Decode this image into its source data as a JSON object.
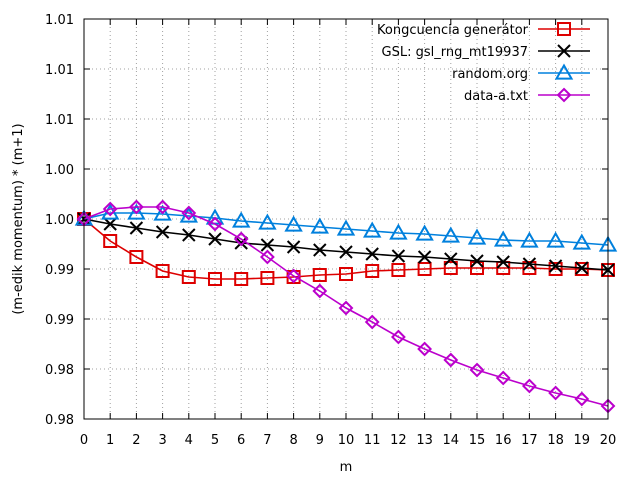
{
  "chart_data": {
    "type": "line",
    "xlabel": "m",
    "ylabel": "(m-edik momentum) * (m+1)",
    "xlim": [
      0,
      20
    ],
    "ylim": [
      0.975,
      1.015
    ],
    "xticks": [
      0,
      1,
      2,
      3,
      4,
      5,
      6,
      7,
      8,
      9,
      10,
      11,
      12,
      13,
      14,
      15,
      16,
      17,
      18,
      19,
      20
    ],
    "yticks": [
      {
        "value": 0.975,
        "label": "0.98"
      },
      {
        "value": 0.98,
        "label": "0.98"
      },
      {
        "value": 0.985,
        "label": "0.99"
      },
      {
        "value": 0.99,
        "label": "0.99"
      },
      {
        "value": 0.995,
        "label": "1.00"
      },
      {
        "value": 1.0,
        "label": "1.00"
      },
      {
        "value": 1.005,
        "label": "1.01"
      },
      {
        "value": 1.01,
        "label": "1.01"
      },
      {
        "value": 1.015,
        "label": "1.01"
      }
    ],
    "grid": true,
    "legend_position": "top-right",
    "x": [
      0,
      1,
      2,
      3,
      4,
      5,
      6,
      7,
      8,
      9,
      10,
      11,
      12,
      13,
      14,
      15,
      16,
      17,
      18,
      19,
      20
    ],
    "series": [
      {
        "name": "Kongcuencia generátor",
        "color": "#dd0000",
        "marker": "square",
        "values": [
          0.995,
          0.9928,
          0.9912,
          0.9898,
          0.9892,
          0.989,
          0.989,
          0.9891,
          0.9892,
          0.9894,
          0.9895,
          0.9898,
          0.9899,
          0.99,
          0.9901,
          0.9901,
          0.9901,
          0.9901,
          0.99,
          0.99,
          0.9899
        ]
      },
      {
        "name": "GSL: gsl_rng_mt19937",
        "color": "#000000",
        "marker": "cross",
        "values": [
          0.995,
          0.9945,
          0.9941,
          0.9937,
          0.9934,
          0.993,
          0.9926,
          0.9924,
          0.9922,
          0.9919,
          0.9917,
          0.9915,
          0.9913,
          0.9912,
          0.991,
          0.9908,
          0.9907,
          0.9905,
          0.9903,
          0.9901,
          0.9899
        ]
      },
      {
        "name": "random.org",
        "color": "#0080dd",
        "marker": "triangle",
        "values": [
          0.995,
          0.9956,
          0.9956,
          0.9955,
          0.9953,
          0.9951,
          0.9948,
          0.9946,
          0.9944,
          0.9942,
          0.994,
          0.9938,
          0.9936,
          0.9935,
          0.9933,
          0.9931,
          0.9929,
          0.9928,
          0.9928,
          0.9926,
          0.9924
        ]
      },
      {
        "name": "data-a.txt",
        "color": "#bb00cc",
        "marker": "diamond",
        "values": [
          0.995,
          0.996,
          0.9962,
          0.9962,
          0.9956,
          0.9945,
          0.993,
          0.9912,
          0.9893,
          0.9878,
          0.9861,
          0.9847,
          0.9832,
          0.982,
          0.9809,
          0.9799,
          0.9791,
          0.9783,
          0.9776,
          0.977,
          0.9763
        ]
      }
    ]
  }
}
